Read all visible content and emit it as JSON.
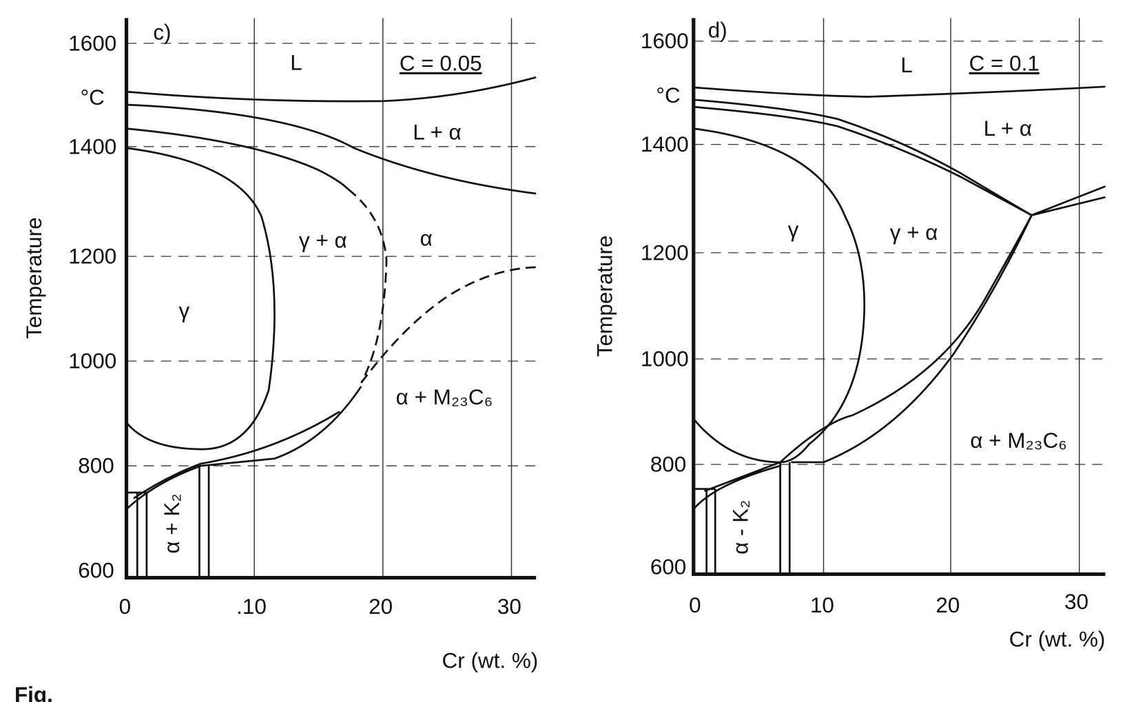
{
  "panels": [
    {
      "label": "c)",
      "composition": "C = 0.05",
      "unit": "°C",
      "y_axis_label": "Temperature",
      "x_axis_label": "Cr (wt. %)",
      "yticks": [
        "1600",
        "1400",
        "1200",
        "1000",
        "800",
        "600"
      ],
      "xticks": [
        "0",
        ".10",
        "20",
        "30"
      ],
      "regions": [
        "L",
        "L + α",
        "α",
        "γ + α",
        "γ",
        "α + M₂₃C₆",
        "α + K₂"
      ]
    },
    {
      "label": "d)",
      "composition": "C = 0.1",
      "unit": "°C",
      "y_axis_label": "Temperature",
      "x_axis_label": "Cr (wt. %)",
      "yticks": [
        "1600",
        "1400",
        "1200",
        "1000",
        "800",
        "600"
      ],
      "xticks": [
        "0",
        "10",
        "20",
        "30"
      ],
      "regions": [
        "L",
        "L + α",
        "γ",
        "γ + α",
        "α + M₂₃C₆",
        "α - K₂"
      ]
    }
  ],
  "caption": "Fig."
}
